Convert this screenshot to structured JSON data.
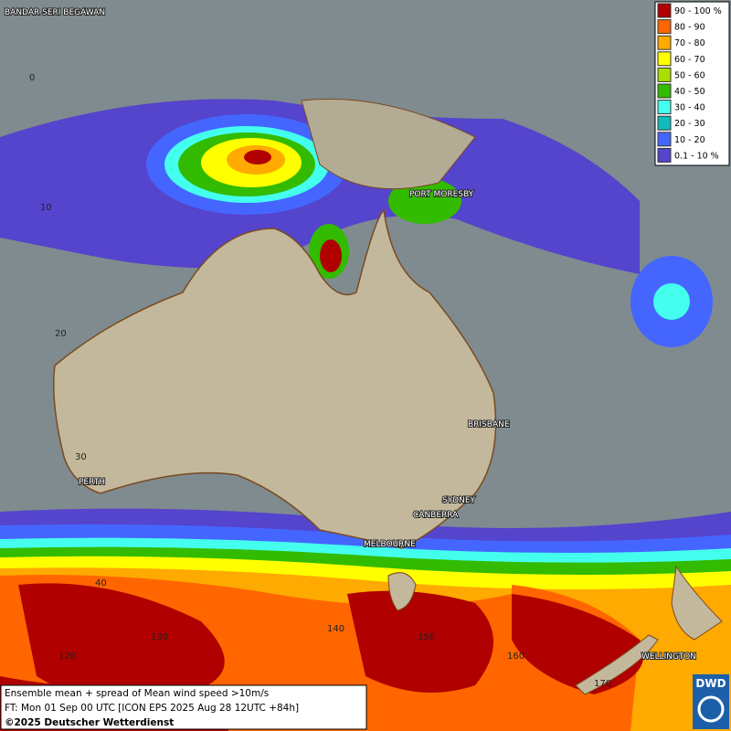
{
  "legend": [
    {
      "label": "90 - 100 %",
      "color": "#b00000"
    },
    {
      "label": "80 - 90",
      "color": "#ff6600"
    },
    {
      "label": "70 - 80",
      "color": "#ffaa00"
    },
    {
      "label": "60 - 70",
      "color": "#ffff00"
    },
    {
      "label": "50 - 60",
      "color": "#aadd00"
    },
    {
      "label": "40 - 50",
      "color": "#33bb00"
    },
    {
      "label": "30 - 40",
      "color": "#44ffee"
    },
    {
      "label": "20 - 30",
      "color": "#11bbbb"
    },
    {
      "label": "10 - 20",
      "color": "#4466ff"
    },
    {
      "label": "0.1 - 10 %",
      "color": "#5544cc"
    }
  ],
  "cities": [
    "BANDAR SERI BEGAWAN",
    "PORT MORESBY",
    "BRISBANE",
    "SYDNEY",
    "CANBERRA",
    "MELBOURNE",
    "PERTH",
    "WELLINGTON"
  ],
  "lat_labels": [
    "0",
    "10",
    "20",
    "30",
    "40"
  ],
  "lon_labels": [
    "120",
    "130",
    "140",
    "150",
    "160",
    "170"
  ],
  "caption": {
    "line1": "Ensemble mean + spread of Mean wind speed >10m/s",
    "line2": "FT: Mon 01 Sep 00 UTC [ICON EPS 2025 Aug 28 12UTC +84h]",
    "line3": "©2025 Deutscher Wetterdienst"
  },
  "logo": "DWD"
}
